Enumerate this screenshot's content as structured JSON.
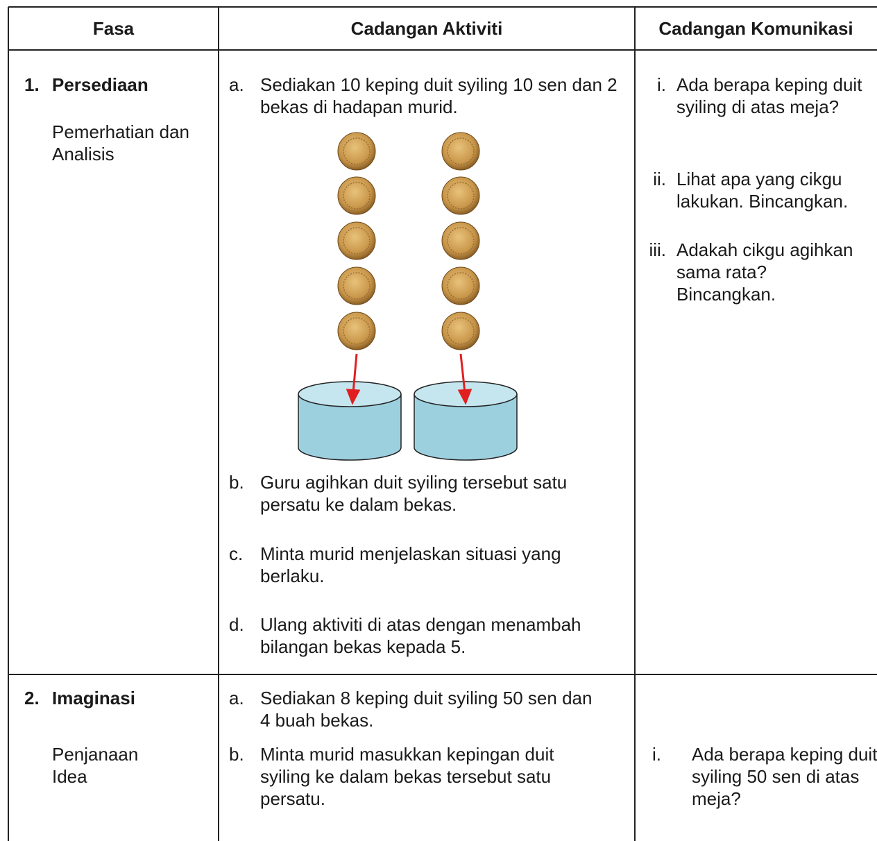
{
  "table": {
    "header": [
      "Fasa",
      "Cadangan Aktiviti",
      "Cadangan Komunikasi"
    ],
    "rows": [
      {
        "phase": {
          "number": "1.",
          "title": "Persediaan",
          "subtitle": "Pemerhatian dan Analisis"
        },
        "activities": [
          {
            "marker": "a.",
            "text": "Sediakan 10 keping duit syiling 10 sen dan 2 bekas di hadapan murid."
          },
          {
            "marker": "b.",
            "text": "Guru agihkan duit syiling tersebut satu persatu ke dalam bekas."
          },
          {
            "marker": "c.",
            "text": "Minta murid menjelaskan situasi yang berlaku."
          },
          {
            "marker": "d.",
            "text": "Ulang aktiviti di atas dengan menambah bilangan bekas kepada 5."
          }
        ],
        "communication": [
          {
            "marker": "i.",
            "text": "Ada berapa keping duit syiling di atas meja?"
          },
          {
            "marker": "ii.",
            "text": "Lihat apa yang cikgu lakukan. Bincangkan."
          },
          {
            "marker": "iii.",
            "text": "Adakah cikgu agihkan sama rata? Bincangkan."
          }
        ]
      },
      {
        "phase": {
          "number": "2.",
          "title": "Imaginasi",
          "subtitle": "Penjanaan Idea"
        },
        "activities": [
          {
            "marker": "a.",
            "text": "Sediakan 8 keping duit syiling 50 sen dan 4 buah bekas."
          },
          {
            "marker": "b.",
            "text": "Minta murid masukkan kepingan duit syiling ke dalam bekas tersebut satu persatu."
          }
        ],
        "communication": [
          {
            "marker": "i.",
            "text": "Ada berapa keping duit syiling 50 sen di atas meja?"
          }
        ]
      }
    ]
  }
}
